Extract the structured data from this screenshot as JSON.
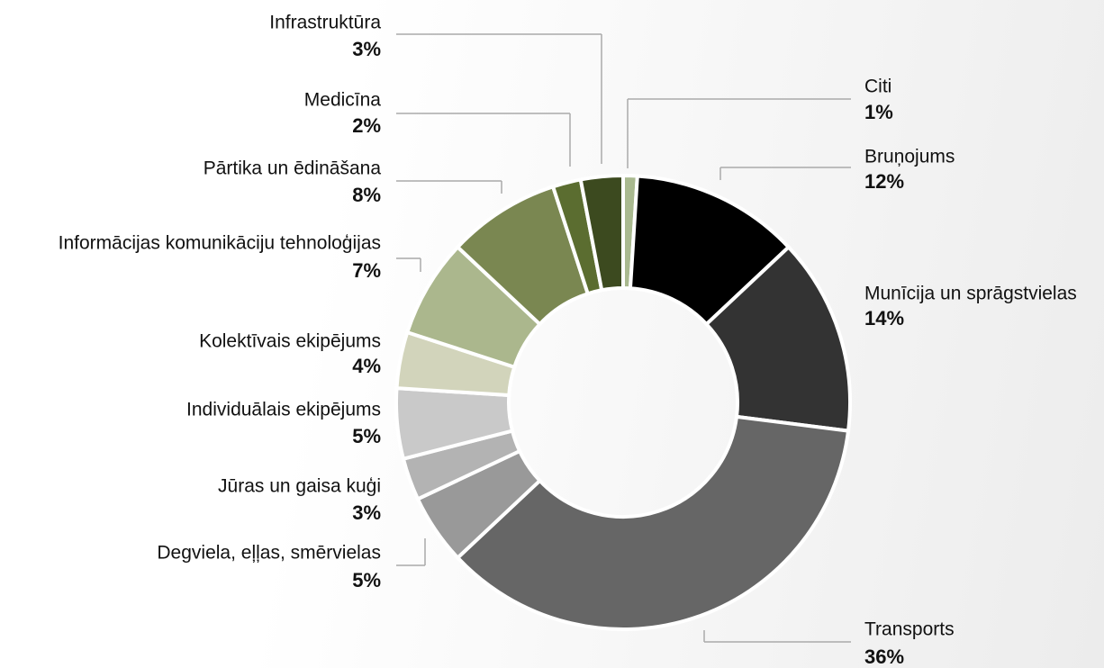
{
  "chart_data": {
    "type": "donut",
    "categories": [
      "Citi",
      "Bruņojums",
      "Munīcija un sprāgstvielas",
      "Transports",
      "Degviela, eļļas, smērvielas",
      "Jūras un gaisa kuģi",
      "Individuālais ekipējums",
      "Kolektīvais ekipējums",
      "Informācijas komunikāciju tehnoloģijas",
      "Pārtika un ēdināšana",
      "Medicīna",
      "Infrastruktūra"
    ],
    "values": [
      1,
      12,
      14,
      36,
      5,
      3,
      5,
      4,
      7,
      8,
      2,
      3
    ],
    "value_labels": [
      "1%",
      "12%",
      "14%",
      "36%",
      "5%",
      "3%",
      "5%",
      "4%",
      "7%",
      "8%",
      "2%",
      "3%"
    ],
    "colors": [
      "#a9b98f",
      "#000000",
      "#333333",
      "#666666",
      "#999999",
      "#b3b3b3",
      "#c9c9c9",
      "#d2d4bb",
      "#abb78d",
      "#7a8751",
      "#5b6d30",
      "#3c4a1f"
    ]
  }
}
